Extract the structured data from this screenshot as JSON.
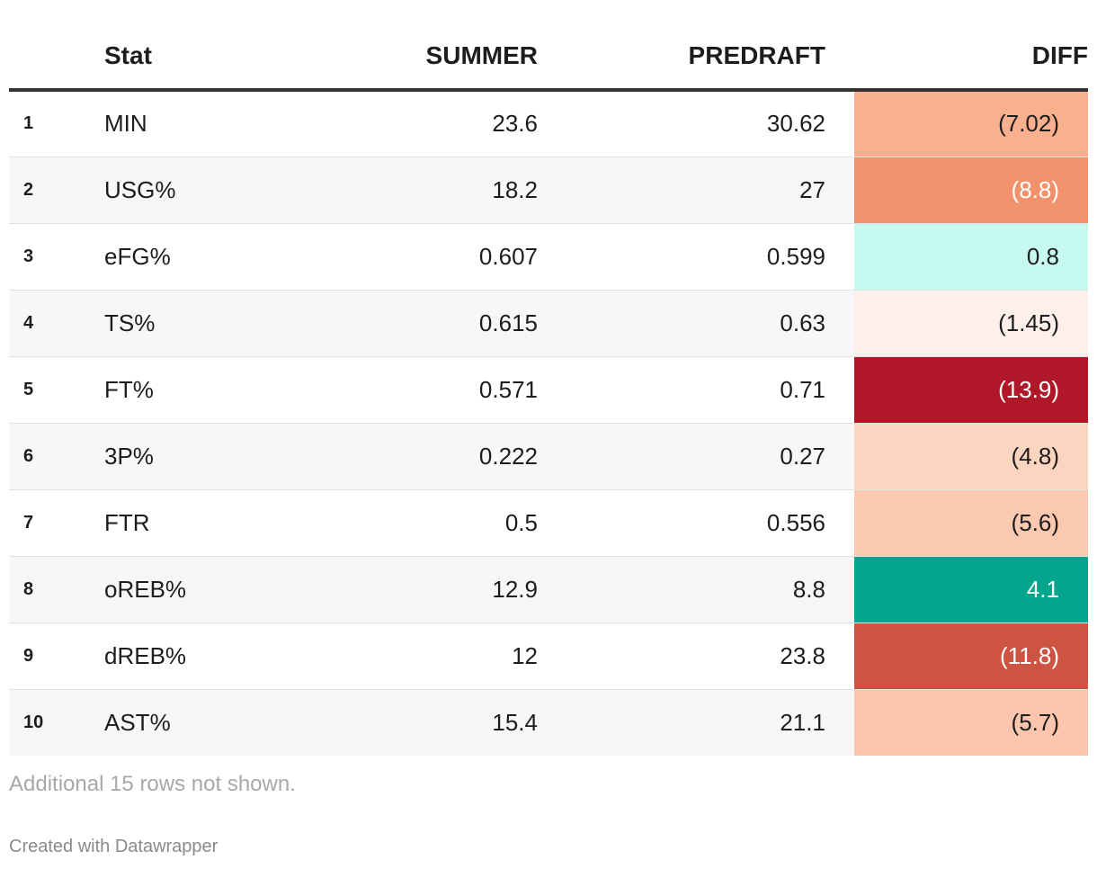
{
  "chart_data": {
    "type": "table",
    "columns": [
      "",
      "Stat",
      "SUMMER",
      "PREDRAFT",
      "DIFF"
    ],
    "rows": [
      {
        "num": "1",
        "stat": "MIN",
        "summer": "23.6",
        "predraft": "30.62",
        "diff": "(7.02)",
        "diff_value": -7.02,
        "diff_bg": "#f9b08f",
        "diff_color": "#1d1d1d"
      },
      {
        "num": "2",
        "stat": "USG%",
        "summer": "18.2",
        "predraft": "27",
        "diff": "(8.8)",
        "diff_value": -8.8,
        "diff_bg": "#f1926c",
        "diff_color": "#ffffff"
      },
      {
        "num": "3",
        "stat": "eFG%",
        "summer": "0.607",
        "predraft": "0.599",
        "diff": "0.8",
        "diff_value": 0.8,
        "diff_bg": "#c6faf1",
        "diff_color": "#1d1d1d"
      },
      {
        "num": "4",
        "stat": "TS%",
        "summer": "0.615",
        "predraft": "0.63",
        "diff": "(1.45)",
        "diff_value": -1.45,
        "diff_bg": "#fdf0ea",
        "diff_color": "#1d1d1d"
      },
      {
        "num": "5",
        "stat": "FT%",
        "summer": "0.571",
        "predraft": "0.71",
        "diff": "(13.9)",
        "diff_value": -13.9,
        "diff_bg": "#b01829",
        "diff_color": "#ffffff"
      },
      {
        "num": "6",
        "stat": "3P%",
        "summer": "0.222",
        "predraft": "0.27",
        "diff": "(4.8)",
        "diff_value": -4.8,
        "diff_bg": "#fcd5c1",
        "diff_color": "#1d1d1d"
      },
      {
        "num": "7",
        "stat": "FTR",
        "summer": "0.5",
        "predraft": "0.556",
        "diff": "(5.6)",
        "diff_value": -5.6,
        "diff_bg": "#fbc8b0",
        "diff_color": "#1d1d1d"
      },
      {
        "num": "8",
        "stat": "oREB%",
        "summer": "12.9",
        "predraft": "8.8",
        "diff": "4.1",
        "diff_value": 4.1,
        "diff_bg": "#03a68c",
        "diff_color": "#ffffff"
      },
      {
        "num": "9",
        "stat": "dREB%",
        "summer": "12",
        "predraft": "23.8",
        "diff": "(11.8)",
        "diff_value": -11.8,
        "diff_bg": "#cd5342",
        "diff_color": "#ffffff"
      },
      {
        "num": "10",
        "stat": "AST%",
        "summer": "15.4",
        "predraft": "21.1",
        "diff": "(5.7)",
        "diff_value": -5.7,
        "diff_bg": "#fbc6ad",
        "diff_color": "#1d1d1d"
      }
    ]
  },
  "footer": {
    "note": "Additional 15 rows not shown.",
    "credit": "Created with Datawrapper"
  }
}
